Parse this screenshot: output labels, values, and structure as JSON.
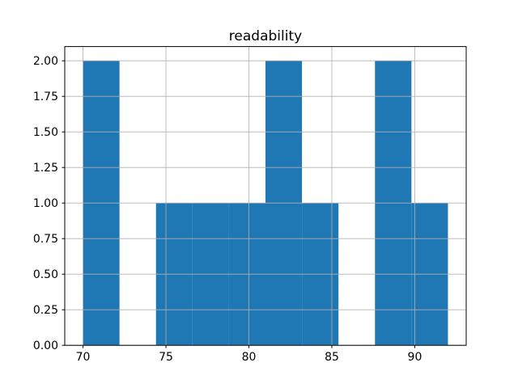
{
  "chart_data": {
    "type": "bar",
    "subtype": "histogram",
    "title": "readability",
    "xlabel": "",
    "ylabel": "",
    "bin_edges": [
      70,
      72.2,
      74.4,
      76.6,
      78.8,
      81,
      83.2,
      85.4,
      87.6,
      89.8,
      92
    ],
    "counts": [
      2,
      0,
      1,
      1,
      1,
      2,
      1,
      0,
      2,
      1
    ],
    "xlim": [
      68.9,
      93.1
    ],
    "ylim": [
      0,
      2.1
    ],
    "xticks": [
      70,
      75,
      80,
      85,
      90
    ],
    "xtick_labels": [
      "70",
      "75",
      "80",
      "85",
      "90"
    ],
    "yticks": [
      0,
      0.25,
      0.5,
      0.75,
      1,
      1.25,
      1.5,
      1.75,
      2
    ],
    "ytick_labels": [
      "0.00",
      "0.25",
      "0.50",
      "0.75",
      "1.00",
      "1.25",
      "1.50",
      "1.75",
      "2.00"
    ],
    "grid": true,
    "legend": null,
    "colors": {
      "bar": "#1f77b4",
      "grid": "#b0b0b0",
      "axis": "#000000",
      "background": "#ffffff",
      "text": "#000000"
    }
  }
}
